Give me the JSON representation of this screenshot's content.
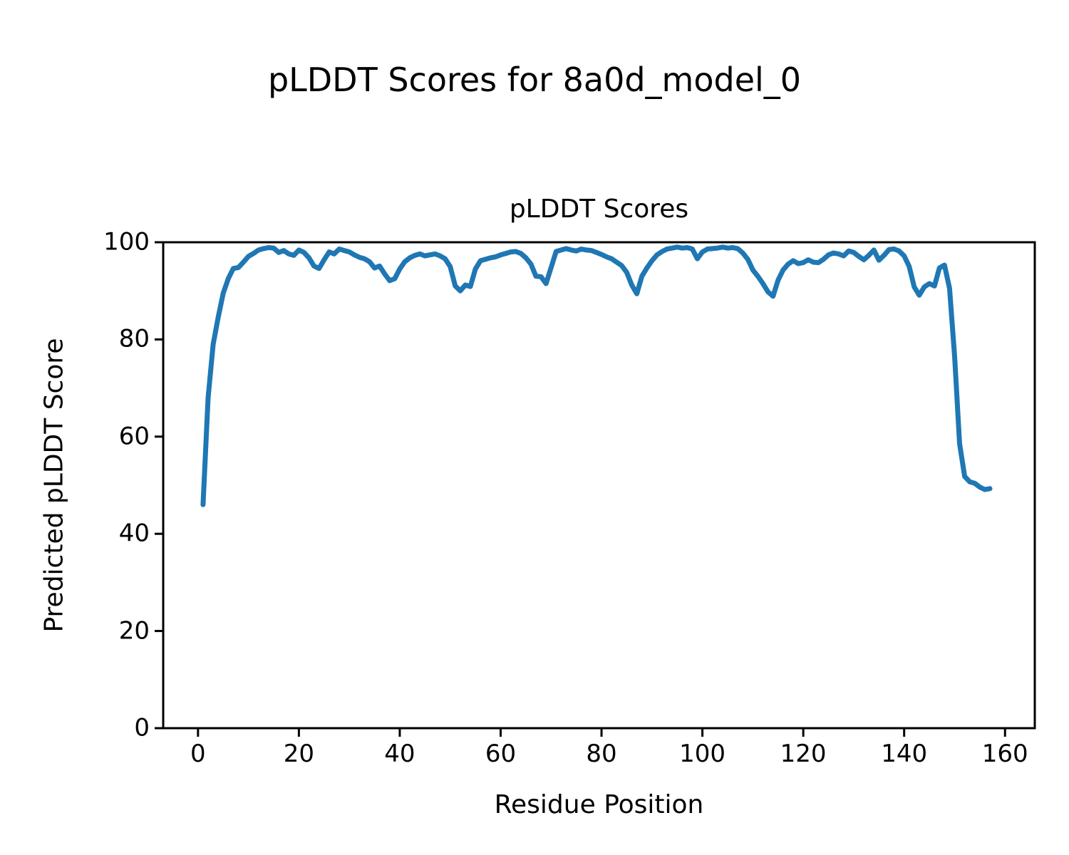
{
  "figure": {
    "suptitle": "pLDDT Scores for 8a0d_model_0"
  },
  "chart_data": {
    "type": "line",
    "title": "pLDDT Scores",
    "xlabel": "Residue Position",
    "ylabel": "Predicted pLDDT Score",
    "xlim": [
      -6.9,
      165.9
    ],
    "ylim": [
      0,
      100
    ],
    "x_ticks": [
      0,
      20,
      40,
      60,
      80,
      100,
      120,
      140,
      160
    ],
    "y_ticks": [
      0,
      20,
      40,
      60,
      80,
      100
    ],
    "grid": false,
    "legend_position": "none",
    "line_color": "#1f77b4",
    "axis_color": "#000000",
    "series": [
      {
        "name": "pLDDT",
        "x_start": 1,
        "values": [
          46.0,
          68.0,
          79.0,
          84.5,
          89.5,
          92.5,
          94.6,
          94.8,
          95.9,
          97.1,
          97.7,
          98.4,
          98.7,
          98.9,
          98.8,
          97.9,
          98.3,
          97.6,
          97.3,
          98.4,
          97.9,
          96.8,
          95.1,
          94.6,
          96.4,
          98.0,
          97.6,
          98.6,
          98.3,
          98.0,
          97.4,
          96.9,
          96.6,
          96.0,
          94.7,
          95.1,
          93.5,
          92.1,
          92.5,
          94.5,
          96.0,
          96.8,
          97.3,
          97.6,
          97.2,
          97.4,
          97.6,
          97.2,
          96.6,
          95.0,
          91.0,
          90.0,
          91.2,
          90.9,
          94.5,
          96.2,
          96.5,
          96.8,
          97.0,
          97.4,
          97.7,
          98.0,
          98.1,
          97.7,
          96.8,
          95.5,
          93.0,
          92.9,
          91.5,
          94.8,
          98.1,
          98.4,
          98.7,
          98.4,
          98.2,
          98.6,
          98.4,
          98.3,
          97.9,
          97.5,
          97.0,
          96.6,
          95.9,
          95.2,
          93.8,
          91.2,
          89.4,
          93.0,
          94.7,
          96.2,
          97.4,
          98.1,
          98.6,
          98.8,
          99.0,
          98.8,
          98.9,
          98.6,
          96.6,
          98.0,
          98.6,
          98.7,
          98.8,
          99.0,
          98.8,
          98.9,
          98.7,
          97.8,
          96.5,
          94.3,
          93.0,
          91.5,
          89.8,
          88.9,
          92.2,
          94.3,
          95.5,
          96.2,
          95.6,
          95.8,
          96.4,
          95.9,
          95.8,
          96.5,
          97.4,
          97.8,
          97.6,
          97.2,
          98.2,
          97.9,
          97.1,
          96.4,
          97.3,
          98.4,
          96.3,
          97.3,
          98.5,
          98.6,
          98.2,
          97.2,
          95.0,
          90.8,
          89.1,
          90.8,
          91.5,
          91.0,
          94.7,
          95.3,
          90.5,
          76.5,
          58.5,
          51.8,
          50.7,
          50.4,
          49.6,
          49.1,
          49.3
        ]
      }
    ]
  }
}
